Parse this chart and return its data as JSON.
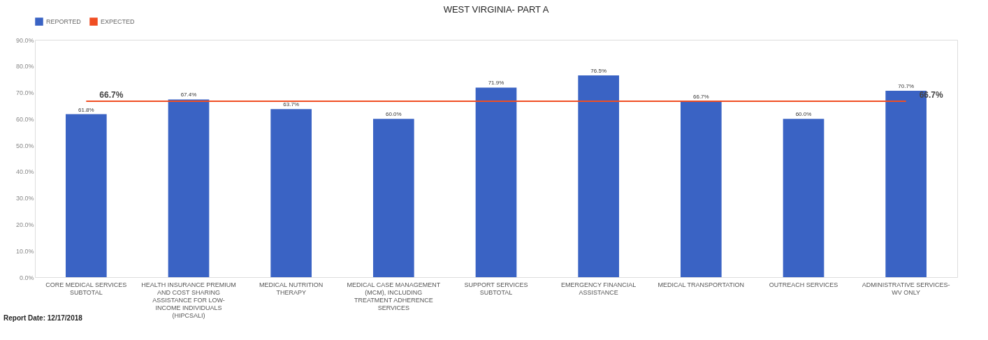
{
  "chart_data": {
    "type": "bar",
    "title": "WEST VIRGINIA- PART A",
    "categories": [
      "CORE MEDICAL SERVICES SUBTOTAL",
      "HEALTH INSURANCE PREMIUM AND COST SHARING ASSISTANCE FOR LOW-INCOME INDIVIDUALS (HIPCSALI)",
      "MEDICAL NUTRITION THERAPY",
      "MEDICAL CASE MANAGEMENT (MCM), INCLUDING TREATMENT ADHERENCE SERVICES",
      "SUPPORT SERVICES SUBTOTAL",
      "EMERGENCY FINANCIAL ASSISTANCE",
      "MEDICAL TRANSPORTATION",
      "OUTREACH SERVICES",
      "ADMINISTRATIVE SERVICES- WV ONLY"
    ],
    "series": [
      {
        "name": "REPORTED",
        "color": "#3a63c4",
        "values": [
          61.8,
          67.4,
          63.7,
          60.0,
          71.9,
          76.5,
          66.7,
          60.0,
          70.7
        ],
        "value_labels": [
          "61.8%",
          "67.4%",
          "63.7%",
          "60.0%",
          "71.9%",
          "76.5%",
          "66.7%",
          "60.0%",
          "70.7%"
        ]
      },
      {
        "name": "EXPECTED",
        "type": "line",
        "color": "#f04e23",
        "values": [
          66.7,
          66.7,
          66.7,
          66.7,
          66.7,
          66.7,
          66.7,
          66.7,
          66.7
        ],
        "value_labels": [
          "66.7%",
          null,
          null,
          null,
          null,
          null,
          null,
          null,
          "66.7%"
        ]
      }
    ],
    "ylim": [
      0,
      90
    ],
    "yticks": [
      {
        "value": 0,
        "label": "0.0%"
      },
      {
        "value": 10,
        "label": "10.0%"
      },
      {
        "value": 20,
        "label": "20.0%"
      },
      {
        "value": 30,
        "label": "30.0%"
      },
      {
        "value": 40,
        "label": "40.0%"
      },
      {
        "value": 50,
        "label": "50.0%"
      },
      {
        "value": 60,
        "label": "60.0%"
      },
      {
        "value": 70,
        "label": "70.0%"
      },
      {
        "value": 80,
        "label": "80.0%"
      },
      {
        "value": 90,
        "label": "90.0%"
      }
    ],
    "grid": false,
    "legend": "top",
    "annotations": [
      "Report Date: 12/17/2018"
    ]
  }
}
